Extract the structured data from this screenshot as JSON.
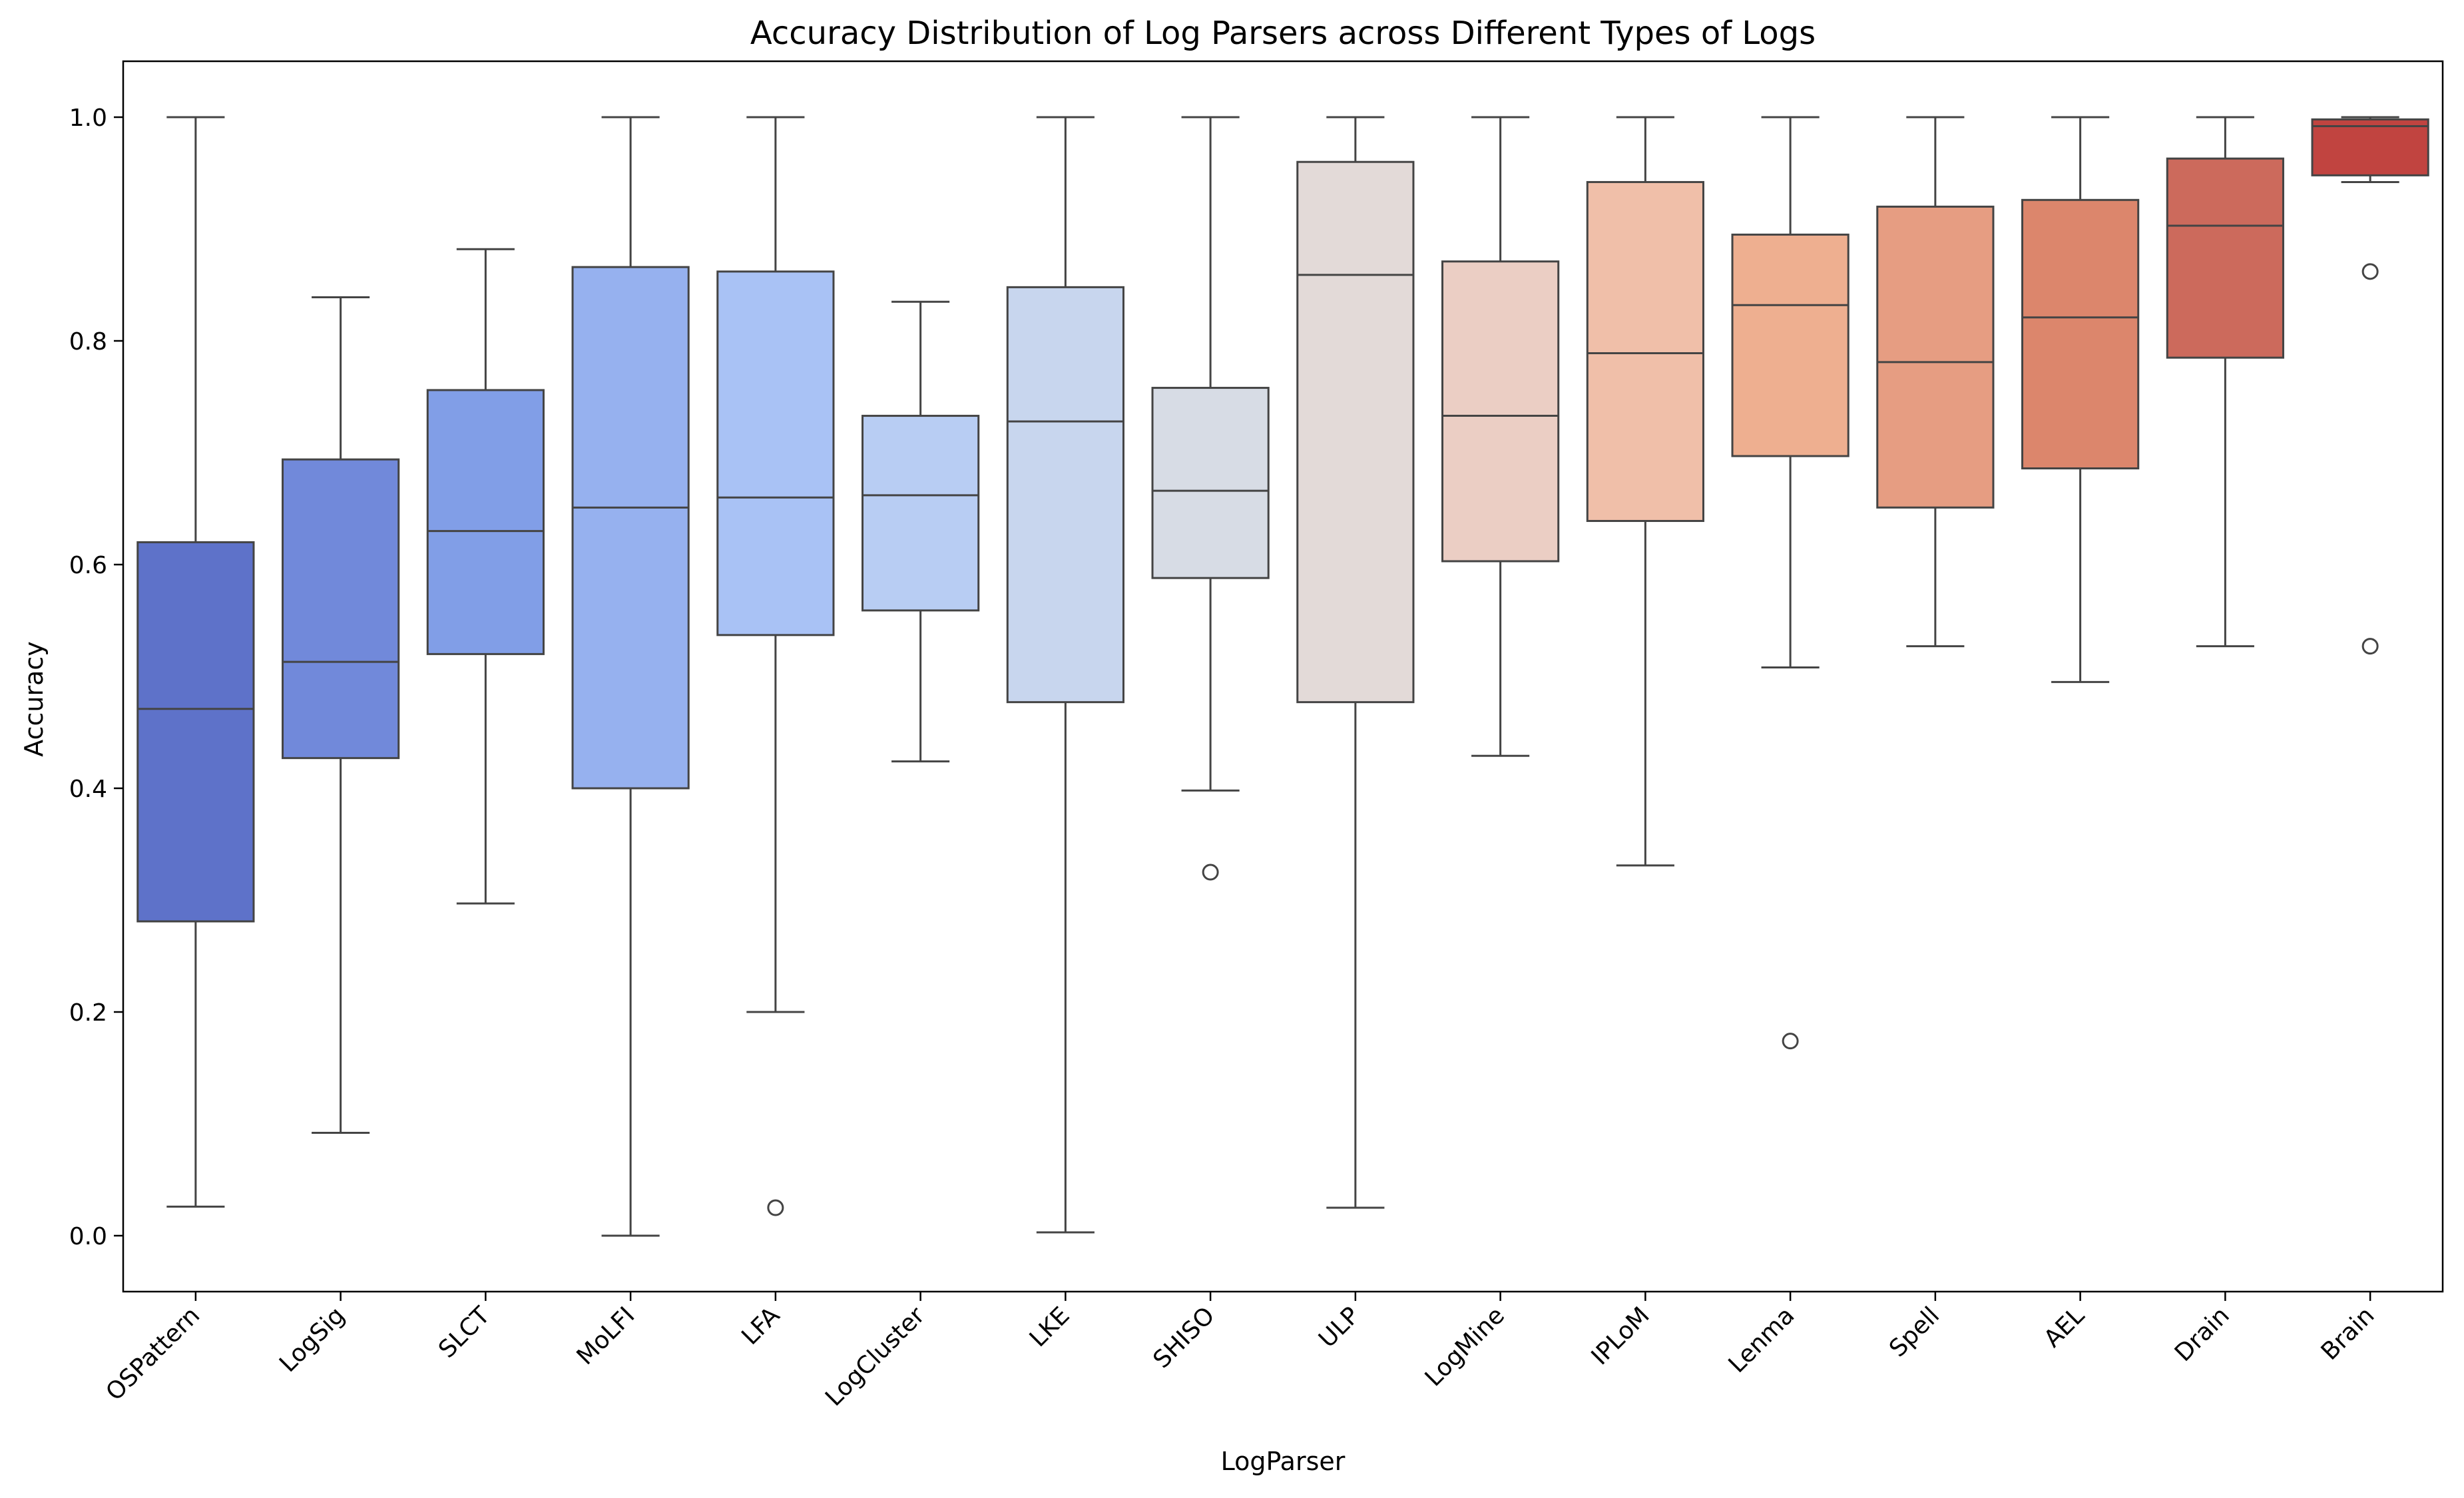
{
  "chart_data": {
    "type": "box",
    "title": "Accuracy Distribution of Log Parsers across Different Types of Logs",
    "xlabel": "LogParser",
    "ylabel": "Accuracy",
    "ylim": [
      -0.05,
      1.05
    ],
    "yticks": [
      "0.0",
      "0.2",
      "0.4",
      "0.6",
      "0.8",
      "1.0"
    ],
    "grid": false,
    "legend": "none",
    "categories": [
      "OSPattern",
      "LogSig",
      "SLCT",
      "MoLFI",
      "LFA",
      "LogCluster",
      "LKE",
      "SHISO",
      "ULP",
      "LogMine",
      "IPLoM",
      "Lenma",
      "Spell",
      "AEL",
      "Drain",
      "Brain"
    ],
    "boxes": [
      {
        "whisker_low": 0.026,
        "q1": 0.281,
        "median": 0.471,
        "q3": 0.62,
        "whisker_high": 1.0,
        "outliers": [],
        "color": "#5e72c9"
      },
      {
        "whisker_low": 0.092,
        "q1": 0.427,
        "median": 0.513,
        "q3": 0.694,
        "whisker_high": 0.839,
        "outliers": [],
        "color": "#7189da"
      },
      {
        "whisker_low": 0.297,
        "q1": 0.52,
        "median": 0.63,
        "q3": 0.756,
        "whisker_high": 0.882,
        "outliers": [],
        "color": "#819ee7"
      },
      {
        "whisker_low": 0.0,
        "q1": 0.4,
        "median": 0.651,
        "q3": 0.866,
        "whisker_high": 1.0,
        "outliers": [],
        "color": "#96b1ef"
      },
      {
        "whisker_low": 0.2,
        "q1": 0.537,
        "median": 0.66,
        "q3": 0.862,
        "whisker_high": 1.0,
        "outliers": [
          0.025
        ],
        "color": "#a9c2f5"
      },
      {
        "whisker_low": 0.424,
        "q1": 0.559,
        "median": 0.662,
        "q3": 0.733,
        "whisker_high": 0.835,
        "outliers": [],
        "color": "#b8cdf3"
      },
      {
        "whisker_low": 0.003,
        "q1": 0.477,
        "median": 0.728,
        "q3": 0.848,
        "whisker_high": 1.0,
        "outliers": [],
        "color": "#c8d6ee"
      },
      {
        "whisker_low": 0.398,
        "q1": 0.588,
        "median": 0.666,
        "q3": 0.758,
        "whisker_high": 1.0,
        "outliers": [
          0.325
        ],
        "color": "#d7dce5"
      },
      {
        "whisker_low": 0.025,
        "q1": 0.477,
        "median": 0.859,
        "q3": 0.96,
        "whisker_high": 1.0,
        "outliers": [],
        "color": "#e3dad8"
      },
      {
        "whisker_low": 0.429,
        "q1": 0.603,
        "median": 0.733,
        "q3": 0.871,
        "whisker_high": 1.0,
        "outliers": [],
        "color": "#ebcec4"
      },
      {
        "whisker_low": 0.331,
        "q1": 0.639,
        "median": 0.789,
        "q3": 0.942,
        "whisker_high": 1.0,
        "outliers": [],
        "color": "#f0bfa9"
      },
      {
        "whisker_low": 0.508,
        "q1": 0.697,
        "median": 0.832,
        "q3": 0.895,
        "whisker_high": 1.0,
        "outliers": [
          0.174
        ],
        "color": "#eeaf90"
      },
      {
        "whisker_low": 0.527,
        "q1": 0.651,
        "median": 0.781,
        "q3": 0.92,
        "whisker_high": 1.0,
        "outliers": [],
        "color": "#e69d82"
      },
      {
        "whisker_low": 0.495,
        "q1": 0.686,
        "median": 0.821,
        "q3": 0.926,
        "whisker_high": 1.0,
        "outliers": [],
        "color": "#dc866c"
      },
      {
        "whisker_low": 0.527,
        "q1": 0.785,
        "median": 0.903,
        "q3": 0.963,
        "whisker_high": 1.0,
        "outliers": [],
        "color": "#cc6a5c"
      },
      {
        "whisker_low": 0.942,
        "q1": 0.948,
        "median": 0.992,
        "q3": 0.998,
        "whisker_high": 1.0,
        "outliers": [
          0.862,
          0.527
        ],
        "color": "#c14440"
      }
    ]
  }
}
